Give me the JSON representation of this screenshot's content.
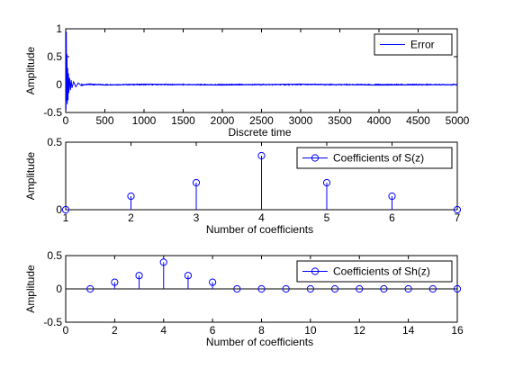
{
  "chart_data": [
    {
      "type": "line",
      "xlabel": "Discrete time",
      "ylabel": "Amplitude",
      "xlim": [
        0,
        5000
      ],
      "ylim": [
        -0.5,
        1
      ],
      "xticks": [
        0,
        500,
        1000,
        1500,
        2000,
        2500,
        3000,
        3500,
        4000,
        4500,
        5000
      ],
      "yticks": [
        -0.5,
        0,
        0.5,
        1
      ],
      "grid": false,
      "legend": "top-right",
      "color": "#0000ff",
      "series": [
        {
          "name": "Error",
          "x": [
            0,
            4,
            8,
            12,
            16,
            20,
            25,
            30,
            35,
            40,
            50,
            60,
            70,
            80,
            100,
            130,
            160,
            200,
            300,
            500,
            1000,
            2000,
            3000,
            4000,
            5000
          ],
          "y": [
            0.85,
            -0.45,
            0.95,
            -0.3,
            0.55,
            -0.35,
            0.3,
            -0.28,
            0.2,
            -0.15,
            0.12,
            -0.1,
            0.08,
            -0.06,
            0.05,
            -0.04,
            0.03,
            -0.02,
            0.015,
            -0.01,
            0.01,
            -0.01,
            0.01,
            -0.01,
            0
          ],
          "steady_state_noise": 0.01
        }
      ]
    },
    {
      "type": "stem",
      "xlabel": "Number of coefficients",
      "ylabel": "Amplitude",
      "xlim": [
        1,
        7
      ],
      "ylim": [
        0,
        0.5
      ],
      "xticks": [
        1,
        2,
        3,
        4,
        5,
        6,
        7
      ],
      "yticks": [
        0,
        0.5
      ],
      "grid": false,
      "legend": "top-right",
      "color": "#0000ff",
      "series": [
        {
          "name": "Coefficients of S(z)",
          "x": [
            1,
            2,
            3,
            4,
            5,
            6,
            7
          ],
          "y": [
            0,
            0.1,
            0.2,
            0.4,
            0.2,
            0.1,
            0
          ]
        }
      ]
    },
    {
      "type": "stem",
      "xlabel": "Number of coefficients",
      "ylabel": "Amplitude",
      "xlim": [
        0,
        16
      ],
      "ylim": [
        -0.5,
        0.5
      ],
      "xticks": [
        0,
        2,
        4,
        6,
        8,
        10,
        12,
        14,
        16
      ],
      "yticks": [
        -0.5,
        0,
        0.5
      ],
      "grid": false,
      "legend": "top-right",
      "color": "#0000ff",
      "series": [
        {
          "name": "Coefficients of Sh(z)",
          "x": [
            1,
            2,
            3,
            4,
            5,
            6,
            7,
            8,
            9,
            10,
            11,
            12,
            13,
            14,
            15,
            16
          ],
          "y": [
            0,
            0.1,
            0.2,
            0.4,
            0.2,
            0.1,
            0,
            0,
            0,
            0,
            0,
            0,
            0,
            0,
            0,
            0
          ]
        }
      ]
    }
  ]
}
